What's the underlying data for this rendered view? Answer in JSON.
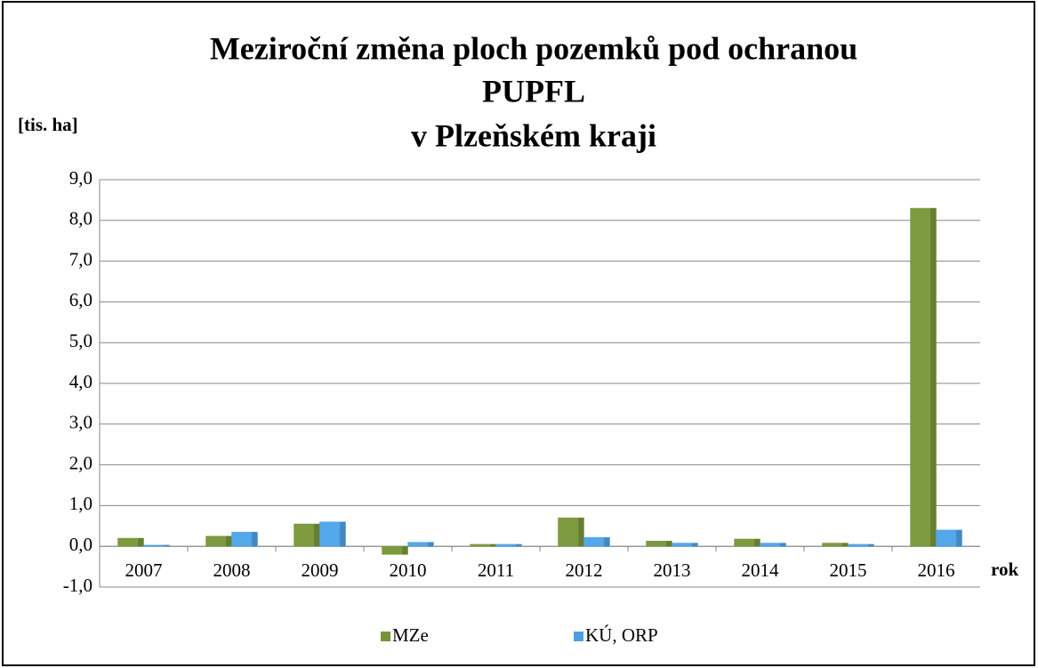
{
  "chart_data": {
    "type": "bar",
    "title": [
      "Meziroční změna ploch pozemků pod ochranou",
      "PUPFL",
      "v Plzeňském kraji"
    ],
    "y_label": "[tis. ha]",
    "x_label": "rok",
    "categories": [
      "2007",
      "2008",
      "2009",
      "2010",
      "2011",
      "2012",
      "2013",
      "2014",
      "2015",
      "2016"
    ],
    "series": [
      {
        "name": "MZe",
        "color": "#77933c",
        "values": [
          0.2,
          0.25,
          0.55,
          -0.2,
          0.05,
          0.7,
          0.13,
          0.18,
          0.08,
          8.3
        ]
      },
      {
        "name": "KÚ, ORP",
        "color": "#4f9fe0",
        "values": [
          0.03,
          0.35,
          0.6,
          0.1,
          0.05,
          0.22,
          0.08,
          0.08,
          0.05,
          0.4
        ]
      }
    ],
    "ylim": [
      -1,
      9
    ],
    "yticks": [
      {
        "value": -1,
        "label": "-1,0"
      },
      {
        "value": 0,
        "label": "0,0"
      },
      {
        "value": 1,
        "label": "1,0"
      },
      {
        "value": 2,
        "label": "2,0"
      },
      {
        "value": 3,
        "label": "3,0"
      },
      {
        "value": 4,
        "label": "4,0"
      },
      {
        "value": 5,
        "label": "5,0"
      },
      {
        "value": 6,
        "label": "6,0"
      },
      {
        "value": 7,
        "label": "7,0"
      },
      {
        "value": 8,
        "label": "8,0"
      },
      {
        "value": 9,
        "label": "9,0"
      }
    ],
    "grid": true
  }
}
